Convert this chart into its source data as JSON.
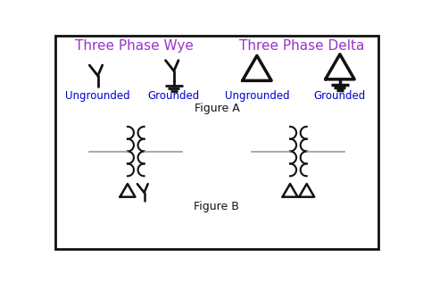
{
  "bg_color": "#ffffff",
  "border_color": "#222222",
  "purple_color": "#9933cc",
  "blue_color": "#0000cc",
  "black_color": "#111111",
  "gray_color": "#999999",
  "section_a_title": "Three Phase Wye",
  "section_b_title": "Three Phase Delta",
  "label_ungrounded": "Ungrounded",
  "label_grounded": "Grounded",
  "figure_a": "Figure A",
  "figure_b": "Figure B"
}
